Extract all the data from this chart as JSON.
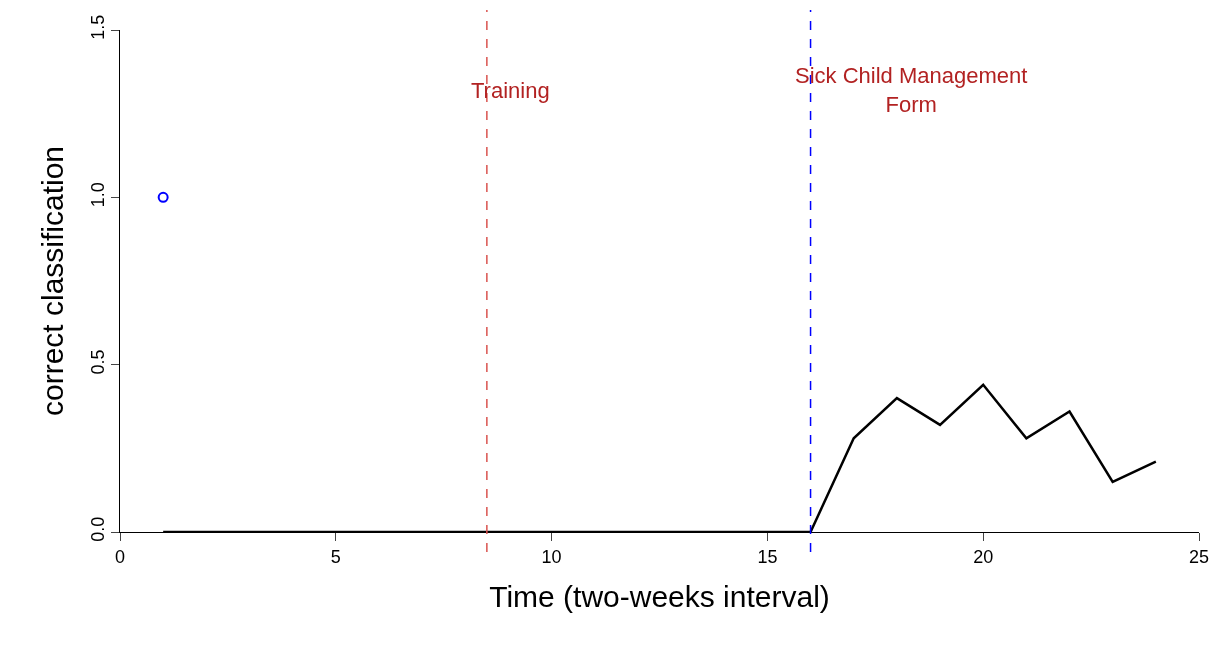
{
  "chart_data": {
    "type": "line",
    "xlabel": "Time (two-weeks interval)",
    "ylabel": "correct classification",
    "xlim": [
      0,
      25
    ],
    "xticks": [
      0,
      5,
      10,
      15,
      20,
      25
    ],
    "ylim": [
      0,
      1.5
    ],
    "yticks": [
      {
        "value": 0,
        "label": "0.0"
      },
      {
        "value": 0.5,
        "label": "0.5"
      },
      {
        "value": 1,
        "label": "1.0"
      },
      {
        "value": 1.5,
        "label": "1.5"
      }
    ],
    "grid": false,
    "series": [
      {
        "color": "#000000",
        "marker": "none",
        "x": [
          1,
          2,
          3,
          4,
          5,
          6,
          7,
          8,
          9,
          10,
          11,
          12,
          13,
          14,
          15,
          16,
          17,
          18,
          19,
          20,
          21,
          22,
          23,
          24
        ],
        "values": [
          0,
          0,
          0,
          0,
          0,
          0,
          0,
          0,
          0,
          0,
          0,
          0,
          0,
          0,
          0,
          0,
          0.28,
          0.4,
          0.32,
          0.44,
          0.28,
          0.36,
          0.15,
          0.21
        ]
      },
      {
        "type": "scatter",
        "color": "#0000ff",
        "marker": "circle",
        "x": [
          1
        ],
        "values": [
          1
        ]
      }
    ],
    "ref_lines": [
      {
        "axis": "x",
        "value": 8.5,
        "label": "Training",
        "color": "#d9534f",
        "line_style": "dashed"
      },
      {
        "axis": "x",
        "value": 16,
        "label": "Sick Child Management\nForm",
        "color": "#0000ff",
        "line_style": "dashed"
      }
    ]
  }
}
